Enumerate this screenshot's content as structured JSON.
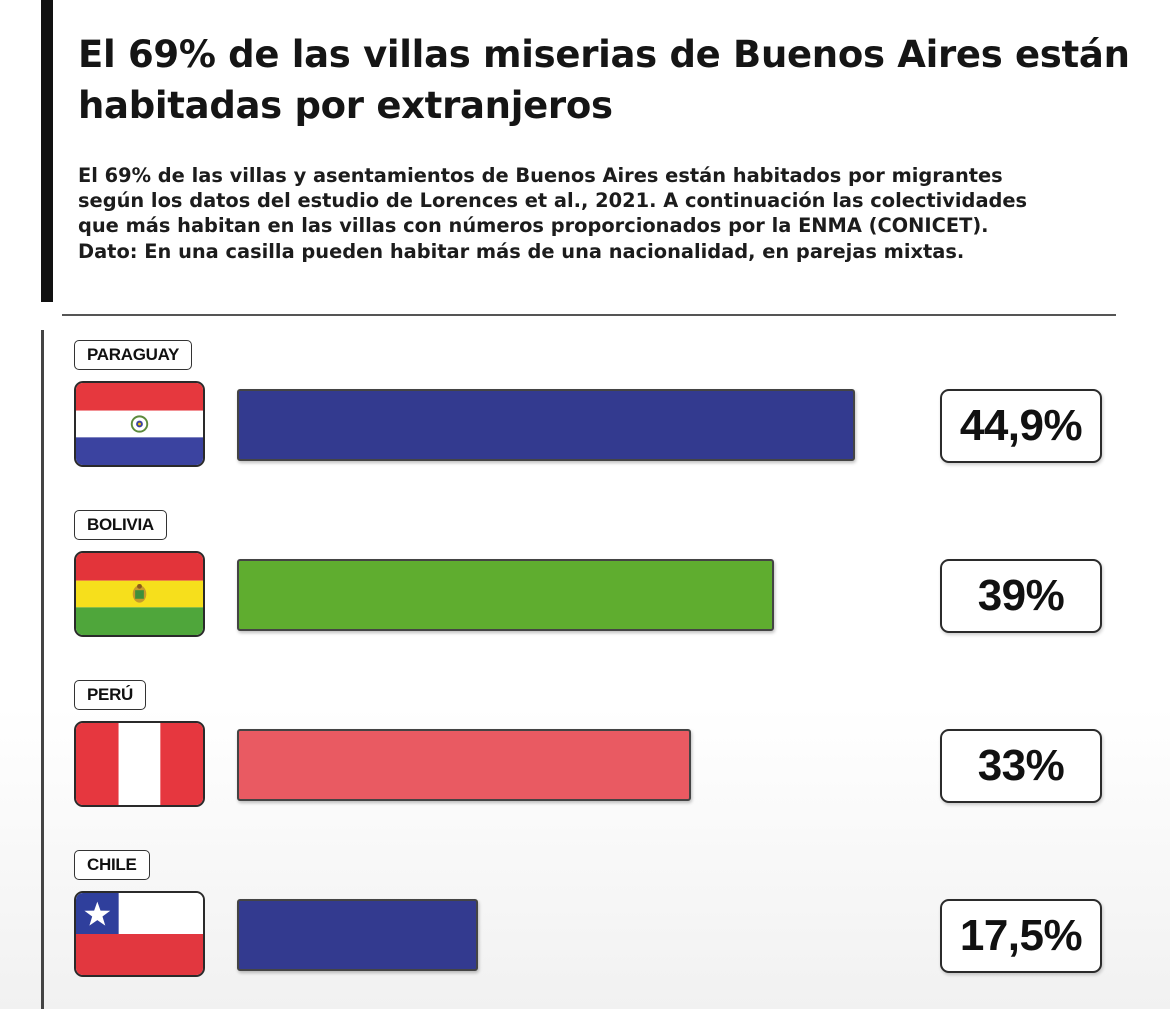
{
  "title": "El 69% de las villas miserias de Buenos Aires están habitadas por extranjeros",
  "subtitle": {
    "lines": [
      "El 69% de las villas y asentamientos de Buenos Aires están habitados por migrantes",
      "según los datos del estudio de Lorences et al., 2021. A continuación las colectividades",
      "que más habitan en las villas con números proporcionados por la ENMA (CONICET).",
      "Dato: En una casilla pueden habitar más de una nacionalidad, en parejas mixtas."
    ]
  },
  "chart_data": {
    "type": "bar",
    "orientation": "horizontal",
    "title": "",
    "xlabel": "",
    "ylabel": "",
    "xlim": [
      0,
      50
    ],
    "grid": false,
    "legend": "none",
    "categories": [
      "PARAGUAY",
      "BOLIVIA",
      "PERÚ",
      "CHILE"
    ],
    "values": [
      44.9,
      39,
      33,
      17.5
    ],
    "value_labels": [
      "44,9%",
      "39%",
      "33%",
      "17,5%"
    ],
    "bar_colors": [
      "#333a8f",
      "#5fad2f",
      "#e95a62",
      "#333a8f"
    ],
    "flags": [
      "paraguay-flag-icon",
      "bolivia-flag-icon",
      "peru-flag-icon",
      "chile-flag-icon"
    ]
  }
}
